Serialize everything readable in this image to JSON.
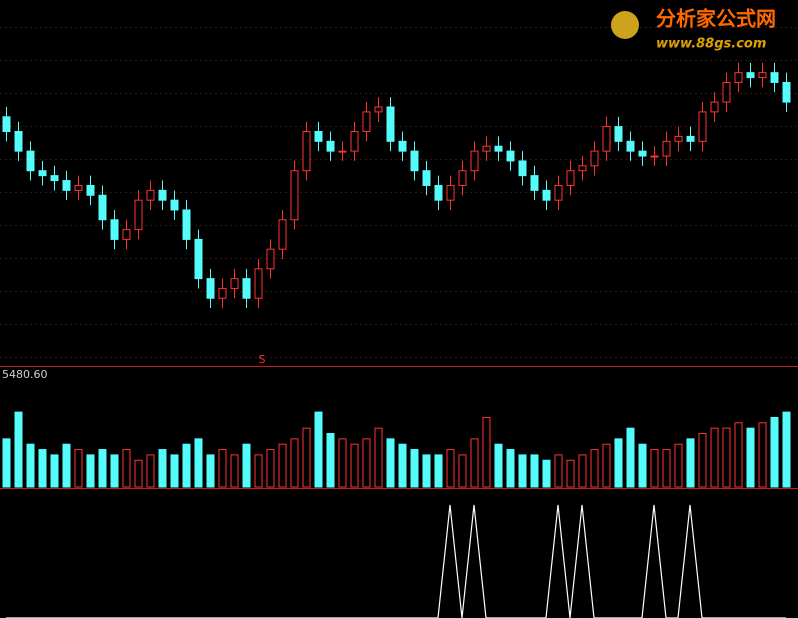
{
  "watermark": {
    "title": "分析家公式网",
    "url": "www.88gs.com"
  },
  "chart_data": [
    {
      "type": "candlestick",
      "up_color": "#ff3232",
      "down_color": "#54fcfc",
      "ylim": [
        35,
        400
      ],
      "annotation": "S",
      "open": [
        285,
        270,
        250,
        230,
        225,
        220,
        210,
        215,
        205,
        180,
        160,
        170,
        200,
        210,
        200,
        190,
        160,
        120,
        100,
        110,
        120,
        100,
        130,
        150,
        180,
        230,
        270,
        260,
        250,
        250,
        270,
        290,
        295,
        260,
        250,
        230,
        215,
        200,
        215,
        230,
        250,
        255,
        250,
        240,
        225,
        210,
        200,
        215,
        230,
        235,
        250,
        275,
        260,
        250,
        245,
        245,
        260,
        265,
        260,
        290,
        300,
        320,
        330,
        325,
        330,
        320
      ],
      "high": [
        295,
        280,
        260,
        240,
        235,
        230,
        225,
        225,
        215,
        190,
        180,
        210,
        220,
        220,
        210,
        200,
        170,
        130,
        120,
        130,
        130,
        140,
        160,
        190,
        240,
        280,
        280,
        270,
        260,
        280,
        300,
        305,
        305,
        270,
        260,
        240,
        225,
        225,
        240,
        260,
        265,
        265,
        260,
        250,
        235,
        220,
        225,
        240,
        245,
        260,
        285,
        285,
        270,
        260,
        255,
        270,
        275,
        275,
        300,
        310,
        330,
        340,
        340,
        340,
        340,
        330
      ],
      "low": [
        260,
        240,
        220,
        215,
        210,
        200,
        200,
        195,
        170,
        150,
        150,
        160,
        190,
        190,
        180,
        150,
        110,
        90,
        90,
        100,
        90,
        90,
        120,
        140,
        170,
        220,
        250,
        240,
        240,
        240,
        260,
        280,
        250,
        240,
        220,
        205,
        190,
        190,
        205,
        220,
        240,
        240,
        230,
        215,
        200,
        190,
        190,
        205,
        220,
        225,
        240,
        250,
        240,
        235,
        235,
        235,
        250,
        250,
        250,
        280,
        290,
        310,
        315,
        315,
        310,
        290
      ],
      "close": [
        270,
        250,
        230,
        225,
        220,
        210,
        215,
        205,
        180,
        160,
        170,
        200,
        210,
        200,
        190,
        160,
        120,
        100,
        110,
        120,
        100,
        130,
        150,
        180,
        230,
        270,
        260,
        250,
        250,
        270,
        290,
        295,
        260,
        250,
        230,
        215,
        200,
        215,
        230,
        250,
        255,
        250,
        240,
        225,
        210,
        200,
        215,
        230,
        235,
        250,
        275,
        260,
        250,
        245,
        245,
        260,
        265,
        260,
        290,
        300,
        320,
        330,
        325,
        330,
        320,
        300
      ]
    },
    {
      "type": "bar",
      "label": "5480.60",
      "ylim": [
        0,
        100
      ],
      "values": [
        45,
        70,
        40,
        35,
        30,
        40,
        35,
        30,
        35,
        30,
        35,
        25,
        30,
        35,
        30,
        40,
        45,
        30,
        35,
        30,
        40,
        30,
        35,
        40,
        45,
        55,
        70,
        50,
        45,
        40,
        45,
        55,
        45,
        40,
        35,
        30,
        30,
        35,
        30,
        45,
        65,
        40,
        35,
        30,
        30,
        25,
        30,
        25,
        30,
        35,
        40,
        45,
        55,
        40,
        35,
        35,
        40,
        45,
        50,
        55,
        55,
        60,
        55,
        60,
        65,
        70
      ]
    },
    {
      "type": "line",
      "color": "#ffffff",
      "ylim": [
        0,
        100
      ],
      "values": [
        0,
        0,
        0,
        0,
        0,
        0,
        0,
        0,
        0,
        0,
        0,
        0,
        0,
        0,
        0,
        0,
        0,
        0,
        0,
        0,
        0,
        0,
        0,
        0,
        0,
        0,
        0,
        0,
        0,
        0,
        0,
        0,
        0,
        0,
        0,
        0,
        0,
        100,
        0,
        100,
        0,
        0,
        0,
        0,
        0,
        0,
        100,
        0,
        100,
        0,
        0,
        0,
        0,
        0,
        100,
        0,
        0,
        100,
        0,
        0,
        0,
        0,
        0,
        0,
        0,
        0
      ]
    }
  ]
}
